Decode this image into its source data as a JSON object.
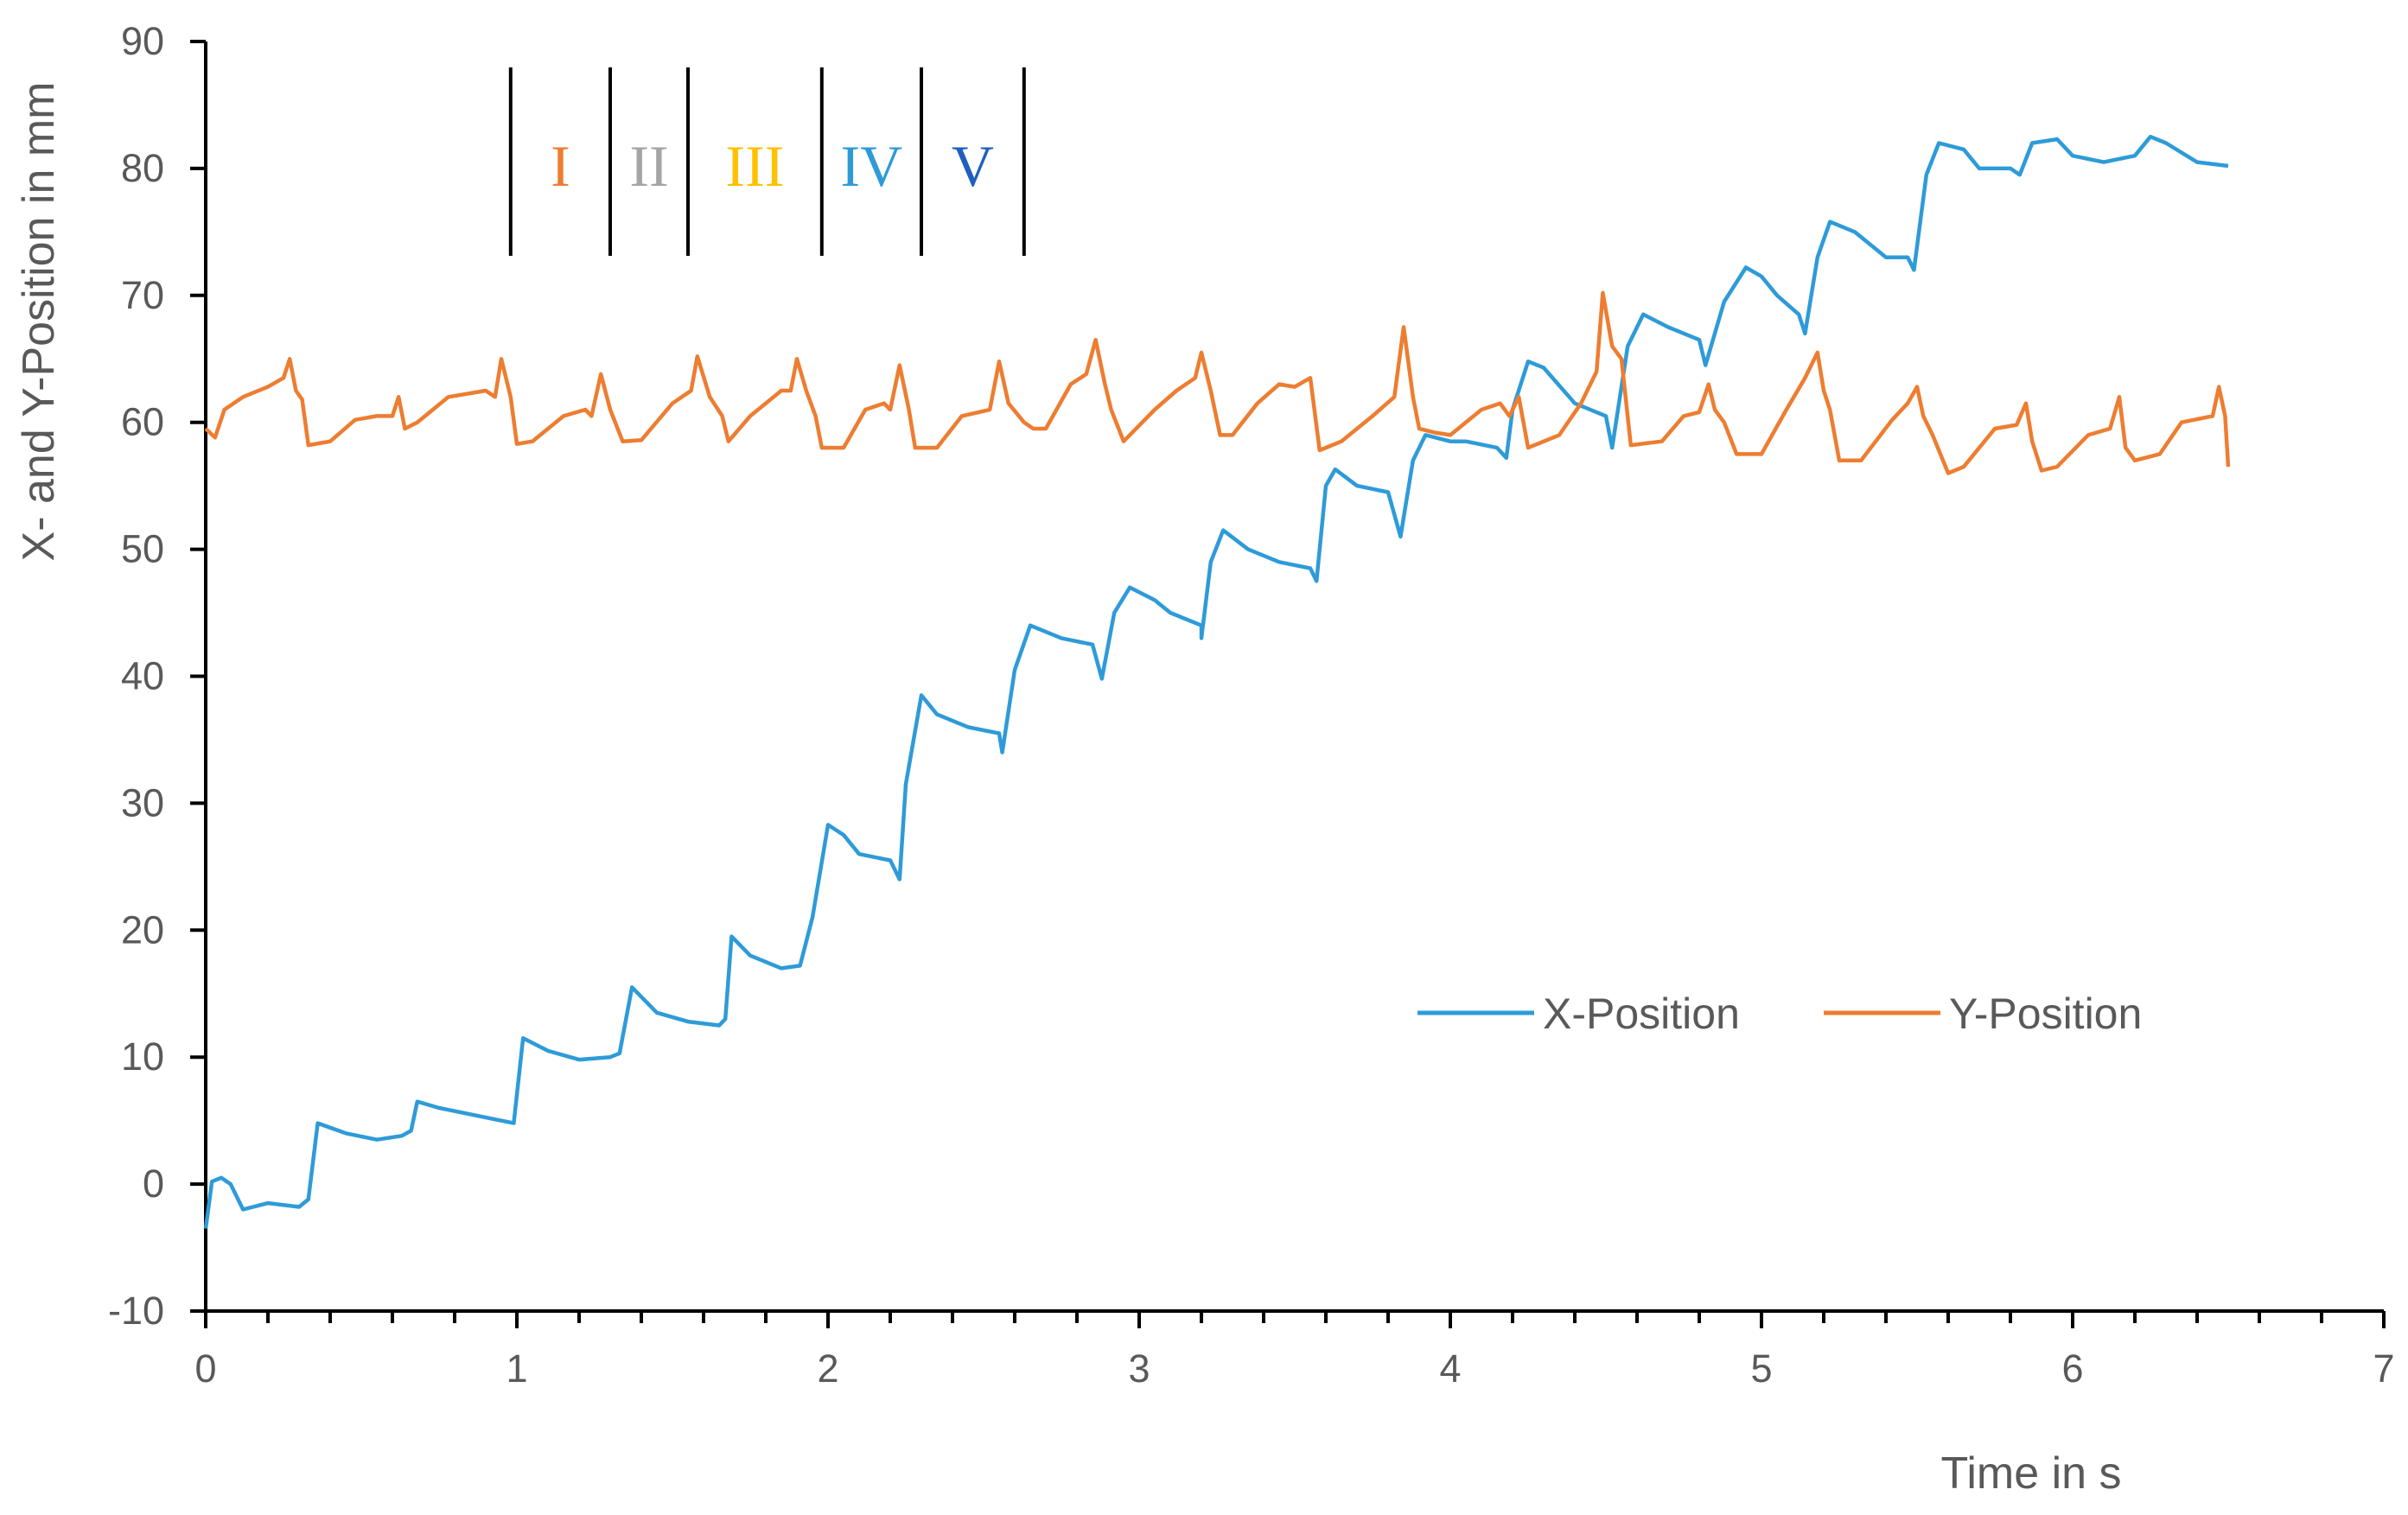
{
  "chart_data": {
    "type": "line",
    "title": "",
    "xlabel": "Time in s",
    "ylabel": "X- and Y-Position in mm",
    "xlim": [
      0,
      7
    ],
    "ylim": [
      -10,
      90
    ],
    "xticks": [
      "0",
      "1",
      "2",
      "3",
      "4",
      "5",
      "6",
      "7"
    ],
    "yticks": [
      "-10",
      "0",
      "10",
      "20",
      "30",
      "40",
      "50",
      "60",
      "70",
      "80",
      "90"
    ],
    "grid": false,
    "legend_position": "bottom-right",
    "phase_markers": {
      "boundaries": [
        0.98,
        1.3,
        1.55,
        1.98,
        2.3,
        2.63
      ],
      "labels": [
        {
          "text": "I",
          "color": "#ED7D31"
        },
        {
          "text": "II",
          "color": "#A5A5A5"
        },
        {
          "text": "III",
          "color": "#FFC000"
        },
        {
          "text": "IV",
          "color": "#2E9BD8"
        },
        {
          "text": "V",
          "color": "#1F5FBF"
        }
      ]
    },
    "series": [
      {
        "name": "X-Position",
        "color": "#2E9BD8",
        "points": [
          [
            0,
            -3.5
          ],
          [
            0.02,
            0.2
          ],
          [
            0.05,
            0.5
          ],
          [
            0.08,
            0
          ],
          [
            0.12,
            -2
          ],
          [
            0.2,
            -1.5
          ],
          [
            0.3,
            -1.8
          ],
          [
            0.33,
            -1.2
          ],
          [
            0.36,
            4.8
          ],
          [
            0.45,
            4
          ],
          [
            0.55,
            3.5
          ],
          [
            0.63,
            3.8
          ],
          [
            0.66,
            4.2
          ],
          [
            0.68,
            6.5
          ],
          [
            0.75,
            6
          ],
          [
            0.85,
            5.5
          ],
          [
            0.95,
            5
          ],
          [
            0.99,
            4.8
          ],
          [
            1.02,
            11.5
          ],
          [
            1.1,
            10.5
          ],
          [
            1.2,
            9.8
          ],
          [
            1.3,
            10
          ],
          [
            1.33,
            10.3
          ],
          [
            1.37,
            15.5
          ],
          [
            1.45,
            13.5
          ],
          [
            1.55,
            12.8
          ],
          [
            1.65,
            12.5
          ],
          [
            1.67,
            13
          ],
          [
            1.69,
            19.5
          ],
          [
            1.75,
            18
          ],
          [
            1.85,
            17
          ],
          [
            1.91,
            17.2
          ],
          [
            1.95,
            21
          ],
          [
            2.0,
            28.3
          ],
          [
            2.05,
            27.5
          ],
          [
            2.1,
            26
          ],
          [
            2.2,
            25.5
          ],
          [
            2.23,
            24
          ],
          [
            2.25,
            31.5
          ],
          [
            2.3,
            38.5
          ],
          [
            2.35,
            37
          ],
          [
            2.45,
            36
          ],
          [
            2.55,
            35.5
          ],
          [
            2.56,
            34
          ],
          [
            2.6,
            40.5
          ],
          [
            2.65,
            44
          ],
          [
            2.75,
            43
          ],
          [
            2.85,
            42.5
          ],
          [
            2.88,
            39.8
          ],
          [
            2.92,
            45
          ],
          [
            2.97,
            47
          ],
          [
            3.05,
            46
          ],
          [
            3.1,
            45
          ],
          [
            3.2,
            44
          ],
          [
            3.2,
            43
          ],
          [
            3.23,
            49
          ],
          [
            3.27,
            51.5
          ],
          [
            3.35,
            50
          ],
          [
            3.45,
            49
          ],
          [
            3.55,
            48.5
          ],
          [
            3.57,
            47.5
          ],
          [
            3.6,
            55
          ],
          [
            3.63,
            56.3
          ],
          [
            3.7,
            55
          ],
          [
            3.8,
            54.5
          ],
          [
            3.84,
            51
          ],
          [
            3.88,
            57
          ],
          [
            3.92,
            59
          ],
          [
            4.0,
            58.5
          ],
          [
            4.05,
            58.5
          ],
          [
            4.15,
            58
          ],
          [
            4.18,
            57.2
          ],
          [
            4.2,
            61
          ],
          [
            4.25,
            64.8
          ],
          [
            4.3,
            64.3
          ],
          [
            4.4,
            61.5
          ],
          [
            4.5,
            60.5
          ],
          [
            4.52,
            58
          ],
          [
            4.57,
            66
          ],
          [
            4.62,
            68.5
          ],
          [
            4.7,
            67.5
          ],
          [
            4.8,
            66.5
          ],
          [
            4.82,
            64.5
          ],
          [
            4.88,
            69.5
          ],
          [
            4.95,
            72.2
          ],
          [
            5.0,
            71.5
          ],
          [
            5.05,
            70
          ],
          [
            5.12,
            68.5
          ],
          [
            5.14,
            67
          ],
          [
            5.18,
            73
          ],
          [
            5.22,
            75.8
          ],
          [
            5.3,
            75
          ],
          [
            5.4,
            73
          ],
          [
            5.47,
            73
          ],
          [
            5.49,
            72
          ],
          [
            5.53,
            79.5
          ],
          [
            5.57,
            82
          ],
          [
            5.65,
            81.5
          ],
          [
            5.7,
            80
          ],
          [
            5.8,
            80
          ],
          [
            5.83,
            79.5
          ],
          [
            5.87,
            82
          ],
          [
            5.95,
            82.3
          ],
          [
            6.0,
            81
          ],
          [
            6.1,
            80.5
          ],
          [
            6.2,
            81
          ],
          [
            6.25,
            82.5
          ],
          [
            6.3,
            82
          ],
          [
            6.4,
            80.5
          ],
          [
            6.5,
            80.2
          ]
        ]
      },
      {
        "name": "Y-Position",
        "color": "#ED7D31",
        "points": [
          [
            0,
            59.5
          ],
          [
            0.03,
            58.8
          ],
          [
            0.06,
            61
          ],
          [
            0.12,
            62
          ],
          [
            0.2,
            62.8
          ],
          [
            0.25,
            63.5
          ],
          [
            0.27,
            65
          ],
          [
            0.29,
            62.5
          ],
          [
            0.31,
            61.8
          ],
          [
            0.33,
            58.2
          ],
          [
            0.4,
            58.5
          ],
          [
            0.48,
            60.2
          ],
          [
            0.55,
            60.5
          ],
          [
            0.6,
            60.5
          ],
          [
            0.62,
            62
          ],
          [
            0.64,
            59.5
          ],
          [
            0.68,
            60
          ],
          [
            0.78,
            62
          ],
          [
            0.9,
            62.5
          ],
          [
            0.93,
            62
          ],
          [
            0.95,
            65
          ],
          [
            0.98,
            62
          ],
          [
            1.0,
            58.3
          ],
          [
            1.05,
            58.5
          ],
          [
            1.15,
            60.5
          ],
          [
            1.22,
            61
          ],
          [
            1.24,
            60.5
          ],
          [
            1.27,
            63.8
          ],
          [
            1.3,
            61
          ],
          [
            1.34,
            58.5
          ],
          [
            1.4,
            58.6
          ],
          [
            1.5,
            61.5
          ],
          [
            1.56,
            62.5
          ],
          [
            1.58,
            65.2
          ],
          [
            1.62,
            62
          ],
          [
            1.66,
            60.5
          ],
          [
            1.68,
            58.5
          ],
          [
            1.75,
            60.5
          ],
          [
            1.85,
            62.5
          ],
          [
            1.88,
            62.5
          ],
          [
            1.9,
            65
          ],
          [
            1.93,
            62.5
          ],
          [
            1.96,
            60.5
          ],
          [
            1.98,
            58
          ],
          [
            2.05,
            58
          ],
          [
            2.12,
            61
          ],
          [
            2.18,
            61.5
          ],
          [
            2.2,
            61
          ],
          [
            2.23,
            64.5
          ],
          [
            2.26,
            61
          ],
          [
            2.28,
            58
          ],
          [
            2.35,
            58
          ],
          [
            2.43,
            60.5
          ],
          [
            2.52,
            61
          ],
          [
            2.55,
            64.8
          ],
          [
            2.58,
            61.5
          ],
          [
            2.63,
            60
          ],
          [
            2.66,
            59.5
          ],
          [
            2.7,
            59.5
          ],
          [
            2.78,
            63
          ],
          [
            2.83,
            63.8
          ],
          [
            2.86,
            66.5
          ],
          [
            2.89,
            63
          ],
          [
            2.91,
            61
          ],
          [
            2.95,
            58.5
          ],
          [
            3.05,
            61
          ],
          [
            3.12,
            62.5
          ],
          [
            3.18,
            63.5
          ],
          [
            3.2,
            65.5
          ],
          [
            3.23,
            62.5
          ],
          [
            3.26,
            59
          ],
          [
            3.3,
            59
          ],
          [
            3.38,
            61.5
          ],
          [
            3.45,
            63
          ],
          [
            3.5,
            62.8
          ],
          [
            3.55,
            63.5
          ],
          [
            3.58,
            57.8
          ],
          [
            3.65,
            58.5
          ],
          [
            3.75,
            60.5
          ],
          [
            3.82,
            62
          ],
          [
            3.85,
            67.5
          ],
          [
            3.88,
            62
          ],
          [
            3.9,
            59.5
          ],
          [
            3.95,
            59.2
          ],
          [
            4.0,
            59
          ],
          [
            4.1,
            61
          ],
          [
            4.16,
            61.5
          ],
          [
            4.19,
            60.5
          ],
          [
            4.22,
            62
          ],
          [
            4.25,
            58
          ],
          [
            4.35,
            59
          ],
          [
            4.42,
            61.5
          ],
          [
            4.47,
            64
          ],
          [
            4.49,
            70.2
          ],
          [
            4.52,
            66
          ],
          [
            4.55,
            65
          ],
          [
            4.58,
            58.2
          ],
          [
            4.68,
            58.5
          ],
          [
            4.75,
            60.5
          ],
          [
            4.8,
            60.8
          ],
          [
            4.83,
            63
          ],
          [
            4.85,
            61
          ],
          [
            4.88,
            60
          ],
          [
            4.92,
            57.5
          ],
          [
            5.0,
            57.5
          ],
          [
            5.08,
            61
          ],
          [
            5.14,
            63.5
          ],
          [
            5.18,
            65.5
          ],
          [
            5.2,
            62.5
          ],
          [
            5.22,
            61
          ],
          [
            5.25,
            57
          ],
          [
            5.32,
            57
          ],
          [
            5.42,
            60.2
          ],
          [
            5.47,
            61.5
          ],
          [
            5.5,
            62.8
          ],
          [
            5.52,
            60.5
          ],
          [
            5.55,
            59
          ],
          [
            5.6,
            56
          ],
          [
            5.65,
            56.5
          ],
          [
            5.75,
            59.5
          ],
          [
            5.82,
            59.8
          ],
          [
            5.85,
            61.5
          ],
          [
            5.87,
            58.5
          ],
          [
            5.9,
            56.2
          ],
          [
            5.95,
            56.5
          ],
          [
            6.05,
            59
          ],
          [
            6.12,
            59.5
          ],
          [
            6.15,
            62
          ],
          [
            6.17,
            58
          ],
          [
            6.2,
            57
          ],
          [
            6.28,
            57.5
          ],
          [
            6.35,
            60
          ],
          [
            6.45,
            60.5
          ],
          [
            6.47,
            62.8
          ],
          [
            6.49,
            60.5
          ],
          [
            6.5,
            56.5
          ]
        ]
      }
    ]
  }
}
